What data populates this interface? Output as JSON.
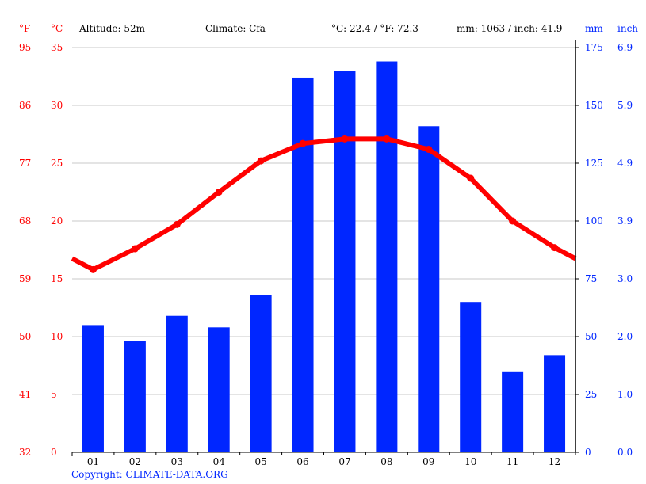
{
  "header": {
    "unit_f": "°F",
    "unit_c": "°C",
    "altitude": "Altitude: 52m",
    "climate": "Climate: Cfa",
    "temp_avg": "°C: 22.4 / °F: 72.3",
    "precip_total": "mm: 1063 / inch: 41.9",
    "unit_mm": "mm",
    "unit_inch": "inch"
  },
  "footer": {
    "copyright": "Copyright: CLIMATE-DATA.ORG"
  },
  "colors": {
    "temperature": "#ff0000",
    "precipitation": "#0026ff",
    "grid": "#c8c8c8",
    "axis": "#000000"
  },
  "chart_data": {
    "type": "bar+line",
    "title": "",
    "categories": [
      "01",
      "02",
      "03",
      "04",
      "05",
      "06",
      "07",
      "08",
      "09",
      "10",
      "11",
      "12"
    ],
    "series": [
      {
        "name": "Precipitation (mm)",
        "type": "bar",
        "axis": "right",
        "values": [
          55,
          48,
          59,
          54,
          68,
          162,
          165,
          169,
          141,
          65,
          35,
          42
        ]
      },
      {
        "name": "Temperature (°C)",
        "type": "line",
        "axis": "left",
        "values": [
          15.8,
          17.6,
          19.7,
          22.5,
          25.2,
          26.7,
          27.1,
          27.1,
          26.2,
          23.7,
          20.0,
          17.7
        ]
      }
    ],
    "left_axis_f_ticks": [
      "32",
      "41",
      "50",
      "59",
      "68",
      "77",
      "86",
      "95"
    ],
    "left_axis_c_ticks": [
      "0",
      "5",
      "10",
      "15",
      "20",
      "25",
      "30",
      "35"
    ],
    "right_axis_mm_ticks": [
      "0",
      "25",
      "50",
      "75",
      "100",
      "125",
      "150",
      "175"
    ],
    "right_axis_inch_ticks": [
      "0.0",
      "1.0",
      "2.0",
      "3.0",
      "3.9",
      "4.9",
      "5.9",
      "6.9"
    ],
    "ylim_c": [
      0,
      35
    ],
    "ylim_mm": [
      0,
      175
    ],
    "grid": true,
    "legend": "none"
  }
}
